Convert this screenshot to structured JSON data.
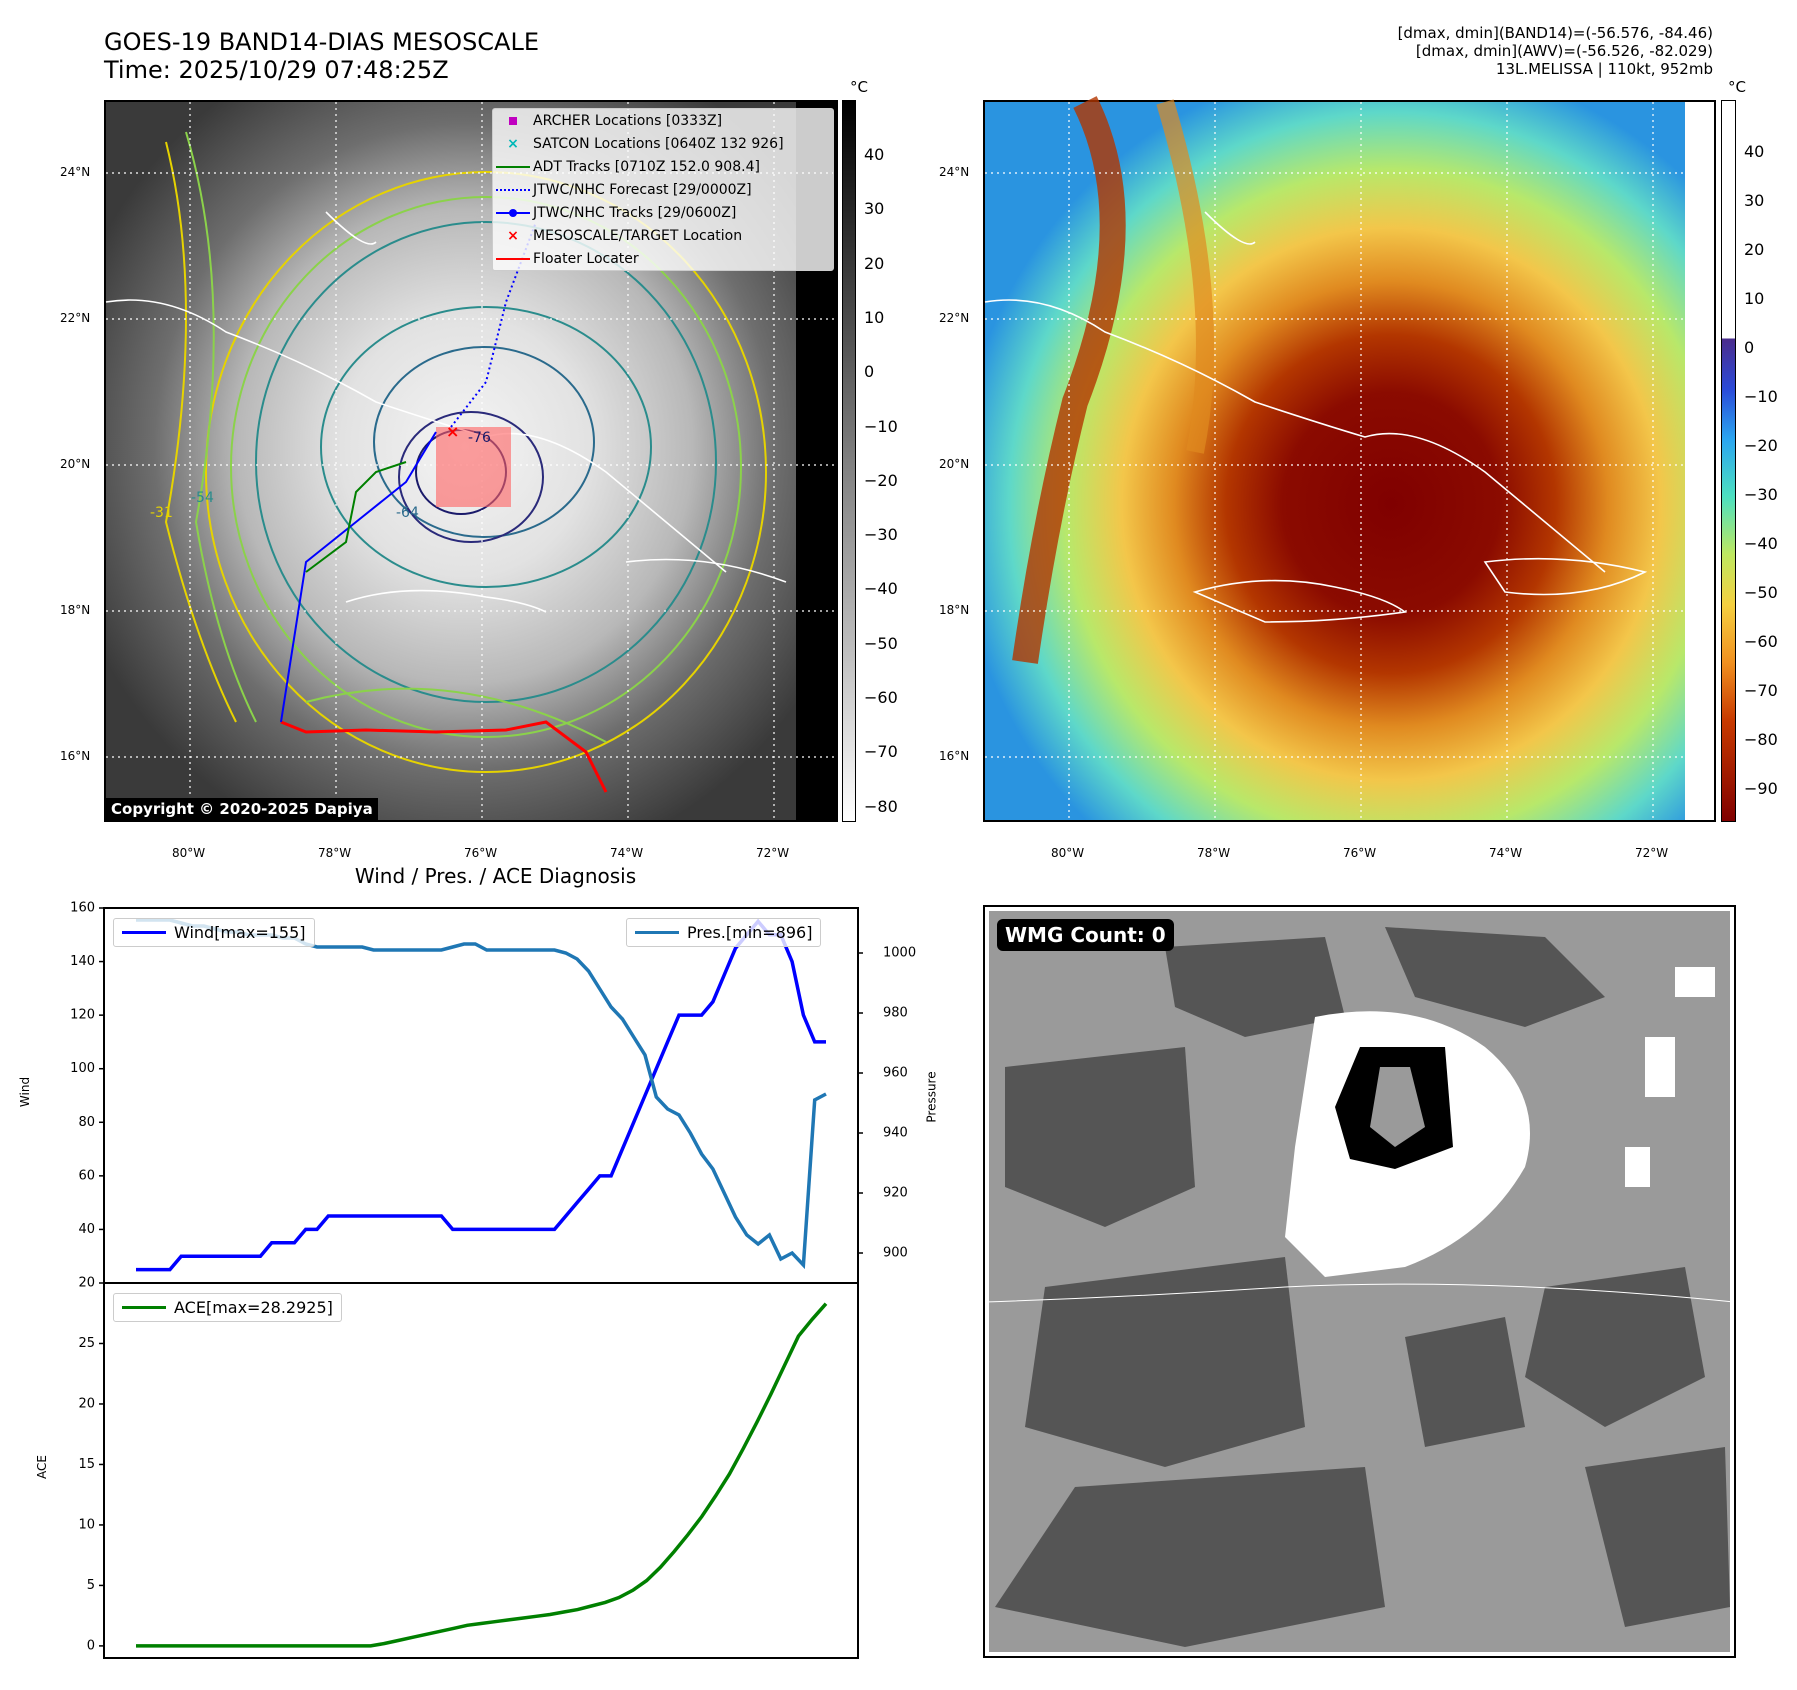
{
  "header": {
    "title_line1": "GOES-19 BAND14-DIAS MESOSCALE",
    "title_line2": "Time: 2025/10/29 07:48:25Z",
    "info_line1": "[dmax, dmin](BAND14)=(-56.576, -84.46)",
    "info_line2": "[dmax, dmin](AWV)=(-56.526, -82.029)",
    "info_line3": "13L.MELISSA | 110kt, 952mb"
  },
  "map": {
    "lon_labels": [
      "80°W",
      "78°W",
      "76°W",
      "74°W",
      "72°W"
    ],
    "lat_labels": [
      "24°N",
      "22°N",
      "20°N",
      "18°N",
      "16°N"
    ],
    "copyright": "Copyright © 2020-2025 Dapiya",
    "colorbar_unit": "°C",
    "gray_colorbar_ticks": [
      "40",
      "30",
      "20",
      "10",
      "0",
      "−10",
      "−20",
      "−30",
      "−40",
      "−50",
      "−60",
      "−70",
      "−80"
    ],
    "color_colorbar_ticks": [
      "40",
      "30",
      "20",
      "10",
      "0",
      "−10",
      "−20",
      "−30",
      "−40",
      "−50",
      "−60",
      "−70",
      "−80",
      "−90"
    ],
    "legend": [
      {
        "label": "ARCHER Locations [0333Z]",
        "icon": "square-marker",
        "color": "#c000c0"
      },
      {
        "label": "SATCON Locations [0640Z 132 926]",
        "icon": "x-marker",
        "color": "#00b8b8"
      },
      {
        "label": "ADT Tracks [0710Z 152.0 908.4]",
        "icon": "line",
        "color": "#008000"
      },
      {
        "label": "JTWC/NHC Forecast [29/0000Z]",
        "icon": "dotted-line",
        "color": "#0000ff"
      },
      {
        "label": "JTWC/NHC Tracks [29/0600Z]",
        "icon": "line-dot",
        "color": "#0000ff"
      },
      {
        "label": "MESOSCALE/TARGET Location",
        "icon": "x-marker",
        "color": "#ff0000"
      },
      {
        "label": "Floater Locater",
        "icon": "line",
        "color": "#ff0000"
      }
    ],
    "contour_labels": [
      "-76",
      "-64",
      "-54",
      "-31"
    ]
  },
  "diagnosis": {
    "title": "Wind / Pres. / ACE Diagnosis",
    "wind_label": "Wind",
    "pressure_label": "Pressure",
    "ace_label": "ACE",
    "wind_legend": "Wind[max=155]",
    "pres_legend": "Pres.[min=896]",
    "ace_legend": "ACE[max=28.2925]",
    "wind_ticks": [
      "160",
      "140",
      "120",
      "100",
      "80",
      "60",
      "40",
      "20"
    ],
    "pres_ticks": [
      "1000",
      "980",
      "960",
      "940",
      "920",
      "900"
    ],
    "ace_ticks": [
      "25",
      "20",
      "15",
      "10",
      "5",
      "0"
    ]
  },
  "wmg": {
    "label": "WMG Count: 0"
  },
  "chart_data": [
    {
      "type": "line",
      "title": "Wind / Pres. / ACE Diagnosis",
      "ylabel": "Wind",
      "y2label": "Pressure",
      "ylim": [
        20,
        160
      ],
      "y2lim": [
        890,
        1015
      ],
      "series": [
        {
          "name": "Wind[max=155]",
          "color": "#0000ff",
          "values": [
            25,
            25,
            25,
            25,
            30,
            30,
            30,
            30,
            30,
            30,
            30,
            30,
            35,
            35,
            35,
            40,
            40,
            45,
            45,
            45,
            45,
            45,
            45,
            45,
            45,
            45,
            45,
            45,
            40,
            40,
            40,
            40,
            40,
            40,
            40,
            40,
            40,
            40,
            45,
            50,
            55,
            60,
            60,
            70,
            80,
            90,
            100,
            110,
            120,
            120,
            120,
            125,
            135,
            145,
            150,
            155,
            150,
            150,
            140,
            120,
            110,
            110
          ]
        },
        {
          "name": "Pres.[min=896]",
          "color": "#1f77b4",
          "axis": "right",
          "values": [
            1011,
            1011,
            1011,
            1011,
            1010,
            1009,
            1009,
            1008,
            1007,
            1007,
            1006,
            1006,
            1006,
            1005,
            1005,
            1003,
            1002,
            1002,
            1002,
            1002,
            1002,
            1001,
            1001,
            1001,
            1001,
            1001,
            1001,
            1001,
            1002,
            1003,
            1003,
            1001,
            1001,
            1001,
            1001,
            1001,
            1001,
            1001,
            1000,
            998,
            994,
            988,
            982,
            978,
            972,
            966,
            952,
            948,
            946,
            940,
            933,
            928,
            920,
            912,
            906,
            903,
            906,
            898,
            900,
            896,
            951,
            953
          ]
        }
      ]
    },
    {
      "type": "line",
      "ylabel": "ACE",
      "ylim": [
        -1,
        30
      ],
      "series": [
        {
          "name": "ACE[max=28.2925]",
          "color": "#008000",
          "values": [
            0,
            0,
            0,
            0,
            0,
            0,
            0,
            0,
            0,
            0,
            0,
            0,
            0,
            0,
            0,
            0,
            0,
            0,
            0.2,
            0.45,
            0.7,
            0.95,
            1.2,
            1.45,
            1.7,
            1.85,
            2.0,
            2.15,
            2.3,
            2.45,
            2.6,
            2.8,
            3.0,
            3.3,
            3.6,
            4.0,
            4.6,
            5.4,
            6.5,
            7.8,
            9.2,
            10.7,
            12.4,
            14.2,
            16.3,
            18.5,
            20.8,
            23.2,
            25.6,
            27.0,
            28.2925
          ]
        }
      ]
    }
  ]
}
